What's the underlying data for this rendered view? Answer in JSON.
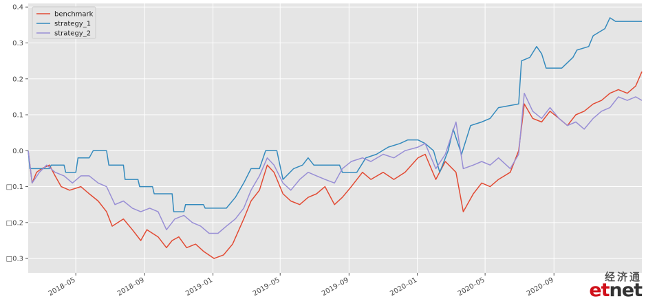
{
  "chart_data": {
    "type": "line",
    "title": "",
    "xlabel": "",
    "ylabel": "",
    "x_range": [
      "2018-02-05",
      "2021-02-05"
    ],
    "ylim": [
      -0.34,
      0.41
    ],
    "y_ticks": [
      0.4,
      0.3,
      0.2,
      0.1,
      0.0,
      -0.1,
      -0.2,
      -0.3
    ],
    "y_tick_labels": [
      "0.4",
      "0.3",
      "0.2",
      "0.1",
      "0.0",
      "□0.1",
      "□0.2",
      "□0.3"
    ],
    "x_ticks": [
      "2018-05-01",
      "2018-09-01",
      "2019-01-01",
      "2019-05-01",
      "2019-09-01",
      "2020-01-01",
      "2020-05-01",
      "2020-09-01"
    ],
    "x_tick_labels": [
      "2018–05",
      "2018–09",
      "2019–01",
      "2019–05",
      "2019–09",
      "2020–01",
      "2020–05",
      "2020–09"
    ],
    "grid": true,
    "legend": "top-left",
    "series": [
      {
        "name": "benchmark",
        "color": "#e24a33",
        "points": [
          [
            "2018-02-05",
            0.0
          ],
          [
            "2018-02-12",
            -0.09
          ],
          [
            "2018-02-20",
            -0.06
          ],
          [
            "2018-03-01",
            -0.05
          ],
          [
            "2018-03-15",
            -0.04
          ],
          [
            "2018-03-25",
            -0.07
          ],
          [
            "2018-04-05",
            -0.1
          ],
          [
            "2018-04-20",
            -0.11
          ],
          [
            "2018-05-10",
            -0.1
          ],
          [
            "2018-05-25",
            -0.12
          ],
          [
            "2018-06-10",
            -0.14
          ],
          [
            "2018-06-25",
            -0.17
          ],
          [
            "2018-07-05",
            -0.21
          ],
          [
            "2018-07-25",
            -0.19
          ],
          [
            "2018-08-10",
            -0.22
          ],
          [
            "2018-08-25",
            -0.25
          ],
          [
            "2018-09-05",
            -0.22
          ],
          [
            "2018-09-25",
            -0.24
          ],
          [
            "2018-10-10",
            -0.27
          ],
          [
            "2018-10-20",
            -0.25
          ],
          [
            "2018-11-01",
            -0.24
          ],
          [
            "2018-11-15",
            -0.27
          ],
          [
            "2018-12-01",
            -0.26
          ],
          [
            "2018-12-15",
            -0.28
          ],
          [
            "2019-01-03",
            -0.3
          ],
          [
            "2019-01-20",
            -0.29
          ],
          [
            "2019-02-05",
            -0.26
          ],
          [
            "2019-02-25",
            -0.19
          ],
          [
            "2019-03-10",
            -0.14
          ],
          [
            "2019-03-25",
            -0.11
          ],
          [
            "2019-04-08",
            -0.04
          ],
          [
            "2019-04-20",
            -0.06
          ],
          [
            "2019-05-06",
            -0.12
          ],
          [
            "2019-05-20",
            -0.14
          ],
          [
            "2019-06-05",
            -0.15
          ],
          [
            "2019-06-20",
            -0.13
          ],
          [
            "2019-07-05",
            -0.12
          ],
          [
            "2019-07-20",
            -0.1
          ],
          [
            "2019-08-06",
            -0.15
          ],
          [
            "2019-08-20",
            -0.13
          ],
          [
            "2019-09-05",
            -0.1
          ],
          [
            "2019-09-25",
            -0.06
          ],
          [
            "2019-10-10",
            -0.08
          ],
          [
            "2019-11-01",
            -0.06
          ],
          [
            "2019-11-20",
            -0.08
          ],
          [
            "2019-12-10",
            -0.06
          ],
          [
            "2020-01-02",
            -0.02
          ],
          [
            "2020-01-15",
            -0.01
          ],
          [
            "2020-02-03",
            -0.08
          ],
          [
            "2020-02-20",
            -0.03
          ],
          [
            "2020-03-10",
            -0.06
          ],
          [
            "2020-03-23",
            -0.17
          ],
          [
            "2020-04-10",
            -0.12
          ],
          [
            "2020-04-25",
            -0.09
          ],
          [
            "2020-05-10",
            -0.1
          ],
          [
            "2020-05-25",
            -0.08
          ],
          [
            "2020-06-15",
            -0.06
          ],
          [
            "2020-06-30",
            0.0
          ],
          [
            "2020-07-10",
            0.13
          ],
          [
            "2020-07-25",
            0.09
          ],
          [
            "2020-08-10",
            0.08
          ],
          [
            "2020-08-25",
            0.11
          ],
          [
            "2020-09-10",
            0.09
          ],
          [
            "2020-09-25",
            0.07
          ],
          [
            "2020-10-10",
            0.1
          ],
          [
            "2020-10-25",
            0.11
          ],
          [
            "2020-11-10",
            0.13
          ],
          [
            "2020-11-25",
            0.14
          ],
          [
            "2020-12-10",
            0.16
          ],
          [
            "2020-12-25",
            0.17
          ],
          [
            "2021-01-10",
            0.16
          ],
          [
            "2021-01-25",
            0.18
          ],
          [
            "2021-02-05",
            0.22
          ]
        ]
      },
      {
        "name": "strategy_1",
        "color": "#348abd",
        "points": [
          [
            "2018-02-05",
            0.0
          ],
          [
            "2018-02-08",
            -0.05
          ],
          [
            "2018-03-15",
            -0.05
          ],
          [
            "2018-03-18",
            -0.04
          ],
          [
            "2018-04-10",
            -0.04
          ],
          [
            "2018-04-13",
            -0.06
          ],
          [
            "2018-05-01",
            -0.06
          ],
          [
            "2018-05-05",
            -0.02
          ],
          [
            "2018-05-25",
            -0.02
          ],
          [
            "2018-06-01",
            0.0
          ],
          [
            "2018-06-25",
            0.0
          ],
          [
            "2018-06-29",
            -0.04
          ],
          [
            "2018-07-25",
            -0.04
          ],
          [
            "2018-07-28",
            -0.08
          ],
          [
            "2018-08-20",
            -0.08
          ],
          [
            "2018-08-23",
            -0.1
          ],
          [
            "2018-09-15",
            -0.1
          ],
          [
            "2018-09-18",
            -0.12
          ],
          [
            "2018-10-20",
            -0.12
          ],
          [
            "2018-10-23",
            -0.17
          ],
          [
            "2018-11-10",
            -0.17
          ],
          [
            "2018-11-13",
            -0.15
          ],
          [
            "2018-12-15",
            -0.15
          ],
          [
            "2018-12-18",
            -0.16
          ],
          [
            "2019-01-25",
            -0.16
          ],
          [
            "2019-02-10",
            -0.13
          ],
          [
            "2019-02-25",
            -0.09
          ],
          [
            "2019-03-10",
            -0.05
          ],
          [
            "2019-03-25",
            -0.05
          ],
          [
            "2019-04-05",
            0.0
          ],
          [
            "2019-04-25",
            0.0
          ],
          [
            "2019-05-06",
            -0.08
          ],
          [
            "2019-05-25",
            -0.05
          ],
          [
            "2019-06-10",
            -0.04
          ],
          [
            "2019-06-20",
            -0.02
          ],
          [
            "2019-06-30",
            -0.04
          ],
          [
            "2019-08-15",
            -0.04
          ],
          [
            "2019-08-20",
            -0.06
          ],
          [
            "2019-09-15",
            -0.06
          ],
          [
            "2019-10-01",
            -0.02
          ],
          [
            "2019-10-20",
            -0.01
          ],
          [
            "2019-11-10",
            0.01
          ],
          [
            "2019-12-01",
            0.02
          ],
          [
            "2019-12-15",
            0.03
          ],
          [
            "2020-01-02",
            0.03
          ],
          [
            "2020-01-15",
            0.02
          ],
          [
            "2020-01-30",
            0.0
          ],
          [
            "2020-02-10",
            -0.06
          ],
          [
            "2020-02-25",
            0.0
          ],
          [
            "2020-03-05",
            0.06
          ],
          [
            "2020-03-20",
            -0.01
          ],
          [
            "2020-04-05",
            0.07
          ],
          [
            "2020-04-25",
            0.08
          ],
          [
            "2020-05-10",
            0.09
          ],
          [
            "2020-05-25",
            0.12
          ],
          [
            "2020-06-30",
            0.13
          ],
          [
            "2020-07-05",
            0.25
          ],
          [
            "2020-07-20",
            0.26
          ],
          [
            "2020-08-01",
            0.29
          ],
          [
            "2020-08-10",
            0.27
          ],
          [
            "2020-08-18",
            0.23
          ],
          [
            "2020-09-15",
            0.23
          ],
          [
            "2020-10-05",
            0.26
          ],
          [
            "2020-10-12",
            0.28
          ],
          [
            "2020-11-02",
            0.29
          ],
          [
            "2020-11-10",
            0.32
          ],
          [
            "2020-12-01",
            0.34
          ],
          [
            "2020-12-10",
            0.37
          ],
          [
            "2020-12-20",
            0.36
          ],
          [
            "2021-02-05",
            0.36
          ]
        ]
      },
      {
        "name": "strategy_2",
        "color": "#988ed5",
        "points": [
          [
            "2018-02-05",
            0.0
          ],
          [
            "2018-02-12",
            -0.09
          ],
          [
            "2018-02-25",
            -0.06
          ],
          [
            "2018-03-10",
            -0.04
          ],
          [
            "2018-03-25",
            -0.06
          ],
          [
            "2018-04-10",
            -0.07
          ],
          [
            "2018-04-25",
            -0.09
          ],
          [
            "2018-05-10",
            -0.07
          ],
          [
            "2018-05-25",
            -0.07
          ],
          [
            "2018-06-10",
            -0.09
          ],
          [
            "2018-06-25",
            -0.1
          ],
          [
            "2018-07-10",
            -0.15
          ],
          [
            "2018-07-25",
            -0.14
          ],
          [
            "2018-08-10",
            -0.16
          ],
          [
            "2018-08-25",
            -0.17
          ],
          [
            "2018-09-10",
            -0.16
          ],
          [
            "2018-09-25",
            -0.17
          ],
          [
            "2018-10-10",
            -0.22
          ],
          [
            "2018-10-25",
            -0.19
          ],
          [
            "2018-11-10",
            -0.18
          ],
          [
            "2018-11-25",
            -0.2
          ],
          [
            "2018-12-10",
            -0.21
          ],
          [
            "2018-12-25",
            -0.23
          ],
          [
            "2019-01-10",
            -0.23
          ],
          [
            "2019-01-25",
            -0.21
          ],
          [
            "2019-02-10",
            -0.19
          ],
          [
            "2019-02-25",
            -0.16
          ],
          [
            "2019-03-10",
            -0.11
          ],
          [
            "2019-03-25",
            -0.07
          ],
          [
            "2019-04-08",
            -0.02
          ],
          [
            "2019-04-20",
            -0.04
          ],
          [
            "2019-05-06",
            -0.09
          ],
          [
            "2019-05-20",
            -0.11
          ],
          [
            "2019-06-05",
            -0.08
          ],
          [
            "2019-06-20",
            -0.06
          ],
          [
            "2019-07-05",
            -0.07
          ],
          [
            "2019-07-20",
            -0.08
          ],
          [
            "2019-08-06",
            -0.09
          ],
          [
            "2019-08-20",
            -0.05
          ],
          [
            "2019-09-05",
            -0.03
          ],
          [
            "2019-09-25",
            -0.02
          ],
          [
            "2019-10-10",
            -0.03
          ],
          [
            "2019-11-01",
            -0.01
          ],
          [
            "2019-11-20",
            -0.02
          ],
          [
            "2019-12-10",
            0.0
          ],
          [
            "2020-01-02",
            0.01
          ],
          [
            "2020-01-15",
            0.02
          ],
          [
            "2020-02-03",
            -0.05
          ],
          [
            "2020-02-20",
            -0.01
          ],
          [
            "2020-03-10",
            0.08
          ],
          [
            "2020-03-23",
            -0.05
          ],
          [
            "2020-04-10",
            -0.04
          ],
          [
            "2020-04-25",
            -0.03
          ],
          [
            "2020-05-10",
            -0.04
          ],
          [
            "2020-05-25",
            -0.02
          ],
          [
            "2020-06-15",
            -0.05
          ],
          [
            "2020-06-30",
            -0.01
          ],
          [
            "2020-07-10",
            0.16
          ],
          [
            "2020-07-25",
            0.11
          ],
          [
            "2020-08-10",
            0.09
          ],
          [
            "2020-08-25",
            0.12
          ],
          [
            "2020-09-10",
            0.09
          ],
          [
            "2020-09-25",
            0.07
          ],
          [
            "2020-10-10",
            0.08
          ],
          [
            "2020-10-25",
            0.06
          ],
          [
            "2020-11-10",
            0.09
          ],
          [
            "2020-11-25",
            0.11
          ],
          [
            "2020-12-10",
            0.12
          ],
          [
            "2020-12-25",
            0.15
          ],
          [
            "2021-01-10",
            0.14
          ],
          [
            "2021-01-25",
            0.15
          ],
          [
            "2021-02-05",
            0.14
          ]
        ]
      }
    ]
  },
  "colors": {
    "plot_background": "#e5e5e5",
    "grid": "#ffffff"
  },
  "watermark": {
    "chinese": "经济通",
    "brand_part1": "et",
    "brand_part2": "net"
  }
}
